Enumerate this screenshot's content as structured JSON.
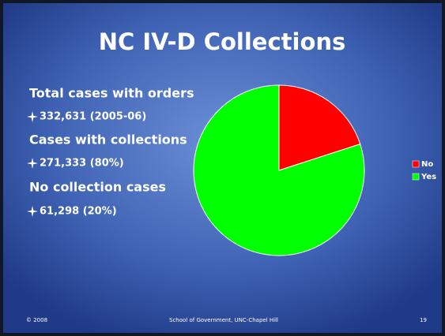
{
  "slide": {
    "title": "NC IV-D Collections",
    "bullets": [
      {
        "text": "Total cases with orders",
        "sub": "332,631 (2005-06)"
      },
      {
        "text": "Cases with collections",
        "sub": "271,333 (80%)"
      },
      {
        "text": "No collection cases",
        "sub": "61,298 (20%)"
      }
    ],
    "footer": {
      "left": "© 2008",
      "center": "School of Government, UNC-Chapel Hill",
      "right": "19"
    }
  },
  "chart_data": {
    "type": "pie",
    "categories": [
      "No",
      "Yes"
    ],
    "values": [
      20,
      80
    ],
    "colors": [
      "#ff0000",
      "#00ff00"
    ],
    "legend": "right"
  }
}
